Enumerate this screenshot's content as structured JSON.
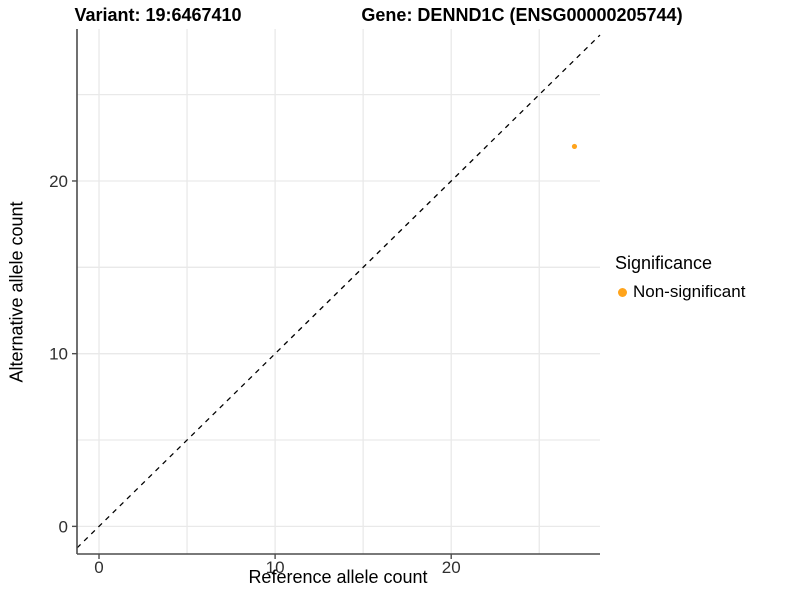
{
  "titles": {
    "variant": "Variant: 19:6467410",
    "gene": "Gene: DENND1C (ENSG00000205744)"
  },
  "chart_data": {
    "type": "scatter",
    "xlabel": "Reference allele count",
    "ylabel": "Alternative allele count",
    "xlim": [
      -1.25,
      28.45
    ],
    "ylim": [
      -1.6,
      28.8
    ],
    "x_ticks": [
      0,
      10,
      20
    ],
    "y_ticks": [
      0,
      10,
      20
    ],
    "x_gridlines": [
      0,
      5,
      10,
      15,
      20,
      25
    ],
    "y_gridlines": [
      0,
      5,
      10,
      15,
      20,
      25
    ],
    "grid": true,
    "reference_line": {
      "type": "identity",
      "equation": "y = x",
      "style": "dashed",
      "color": "#000000"
    },
    "series": [
      {
        "name": "Non-significant",
        "color": "#FFA41C",
        "points": [
          {
            "x": 27,
            "y": 22
          }
        ]
      }
    ],
    "legend": {
      "title": "Significance",
      "position": "right",
      "items": [
        {
          "label": "Non-significant",
          "color": "#FFA41C"
        }
      ]
    }
  },
  "colors": {
    "background": "#FFFFFF",
    "point": "#FFA41C",
    "grid": "#E9E9E9",
    "axis_line": "#4D4D4D",
    "tick_text": "#303030",
    "identity_line": "#000000"
  }
}
